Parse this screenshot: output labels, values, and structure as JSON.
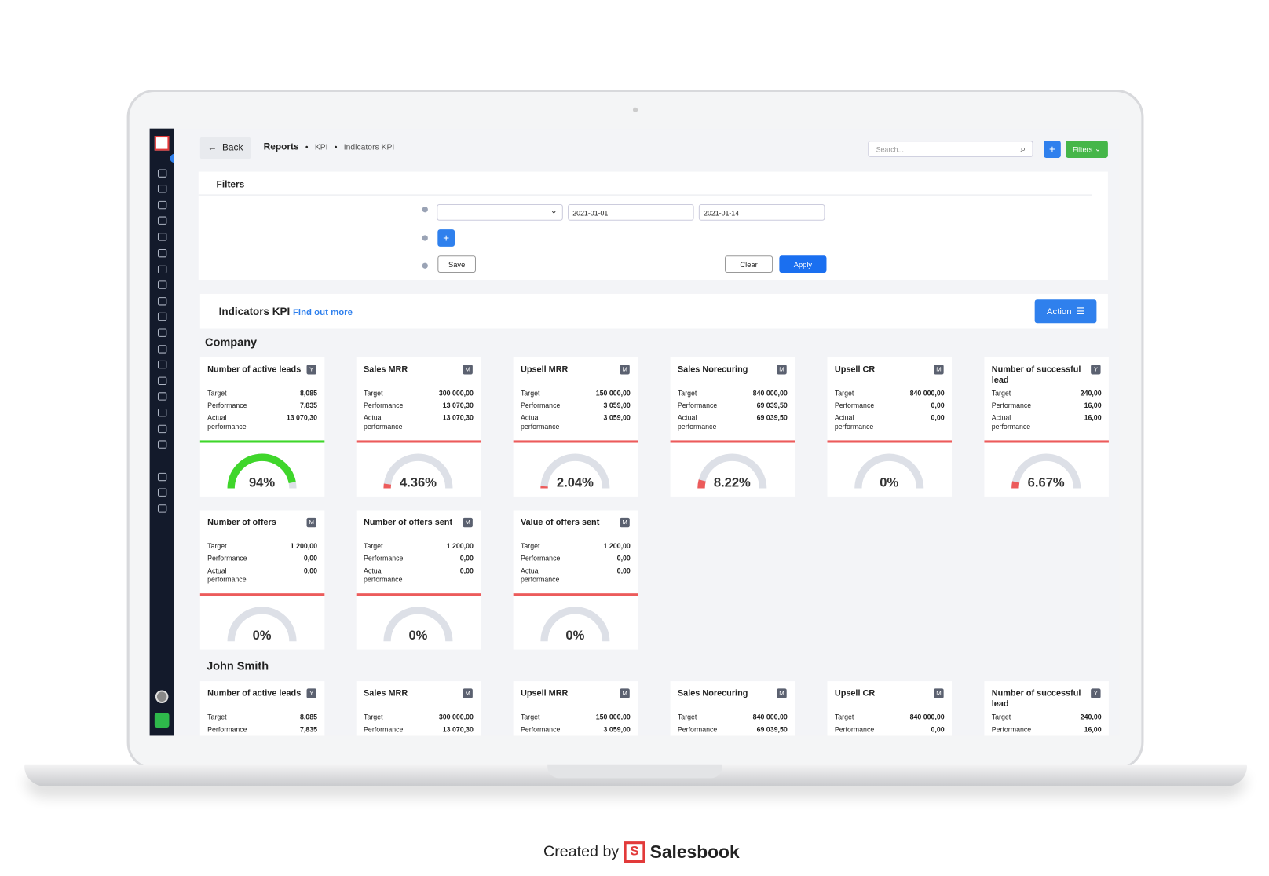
{
  "header": {
    "back": "Back",
    "breadcrumbs": [
      "Reports",
      "KPI",
      "Indicators KPI"
    ],
    "search_placeholder": "Search...",
    "plus": "+",
    "filters_button": "Filters"
  },
  "filters": {
    "title": "Filters",
    "date_from": "2021-01-01",
    "date_to": "2021-01-14",
    "add": "+",
    "save": "Save",
    "clear": "Clear",
    "apply": "Apply"
  },
  "kpi": {
    "title": "Indicators KPI",
    "link": "Find out more",
    "action": "Action"
  },
  "groups": [
    {
      "name": "Company",
      "cards": [
        {
          "title": "Number of active leads",
          "badge": "Y",
          "rows": [
            [
              "Target",
              "8,085"
            ],
            [
              "Performance",
              "7,835"
            ],
            [
              "Actual performance",
              "13 070,30"
            ]
          ],
          "percent": 94,
          "percent_label": "94%",
          "color": "#3fd62b"
        },
        {
          "title": "Sales MRR",
          "badge": "M",
          "rows": [
            [
              "Target",
              "300 000,00"
            ],
            [
              "Performance",
              "13 070,30"
            ],
            [
              "Actual performance",
              "13 070,30"
            ]
          ],
          "percent": 4.36,
          "percent_label": "4.36%",
          "color": "#ec5b5b"
        },
        {
          "title": "Upsell MRR",
          "badge": "M",
          "rows": [
            [
              "Target",
              "150 000,00"
            ],
            [
              "Performance",
              "3 059,00"
            ],
            [
              "Actual performance",
              "3 059,00"
            ]
          ],
          "percent": 2.04,
          "percent_label": "2.04%",
          "color": "#ec5b5b"
        },
        {
          "title": "Sales Norecuring",
          "badge": "M",
          "rows": [
            [
              "Target",
              "840 000,00"
            ],
            [
              "Performance",
              "69 039,50"
            ],
            [
              "Actual performance",
              "69 039,50"
            ]
          ],
          "percent": 8.22,
          "percent_label": "8.22%",
          "color": "#ec5b5b"
        },
        {
          "title": "Upsell CR",
          "badge": "M",
          "rows": [
            [
              "Target",
              "840 000,00"
            ],
            [
              "Performance",
              "0,00"
            ],
            [
              "Actual performance",
              "0,00"
            ]
          ],
          "percent": 0,
          "percent_label": "0%",
          "color": "#ec5b5b"
        },
        {
          "title": "Number of successful lead",
          "badge": "Y",
          "rows": [
            [
              "Target",
              "240,00"
            ],
            [
              "Performance",
              "16,00"
            ],
            [
              "Actual performance",
              "16,00"
            ]
          ],
          "percent": 6.67,
          "percent_label": "6.67%",
          "color": "#ec5b5b"
        },
        {
          "title": "Number of offers",
          "badge": "M",
          "rows": [
            [
              "Target",
              "1 200,00"
            ],
            [
              "Performance",
              "0,00"
            ],
            [
              "Actual performance",
              "0,00"
            ]
          ],
          "percent": 0,
          "percent_label": "0%",
          "color": "#ec5b5b"
        },
        {
          "title": "Number of offers sent",
          "badge": "M",
          "rows": [
            [
              "Target",
              "1 200,00"
            ],
            [
              "Performance",
              "0,00"
            ],
            [
              "Actual performance",
              "0,00"
            ]
          ],
          "percent": 0,
          "percent_label": "0%",
          "color": "#ec5b5b"
        },
        {
          "title": "Value of offers sent",
          "badge": "M",
          "rows": [
            [
              "Target",
              "1 200,00"
            ],
            [
              "Performance",
              "0,00"
            ],
            [
              "Actual performance",
              "0,00"
            ]
          ],
          "percent": 0,
          "percent_label": "0%",
          "color": "#ec5b5b"
        }
      ]
    },
    {
      "name": "John Smith",
      "cards": [
        {
          "title": "Number of active leads",
          "badge": "Y",
          "rows": [
            [
              "Target",
              "8,085"
            ],
            [
              "Performance",
              "7,835"
            ]
          ]
        },
        {
          "title": "Sales MRR",
          "badge": "M",
          "rows": [
            [
              "Target",
              "300 000,00"
            ],
            [
              "Performance",
              "13 070,30"
            ]
          ]
        },
        {
          "title": "Upsell MRR",
          "badge": "M",
          "rows": [
            [
              "Target",
              "150 000,00"
            ],
            [
              "Performance",
              "3 059,00"
            ]
          ]
        },
        {
          "title": "Sales Norecuring",
          "badge": "M",
          "rows": [
            [
              "Target",
              "840 000,00"
            ],
            [
              "Performance",
              "69 039,50"
            ]
          ]
        },
        {
          "title": "Upsell CR",
          "badge": "M",
          "rows": [
            [
              "Target",
              "840 000,00"
            ],
            [
              "Performance",
              "0,00"
            ]
          ]
        },
        {
          "title": "Number of successful lead",
          "badge": "Y",
          "rows": [
            [
              "Target",
              "240,00"
            ],
            [
              "Performance",
              "16,00"
            ]
          ]
        }
      ]
    }
  ],
  "footer": {
    "created_by": "Created by",
    "brand": "Salesbook"
  }
}
